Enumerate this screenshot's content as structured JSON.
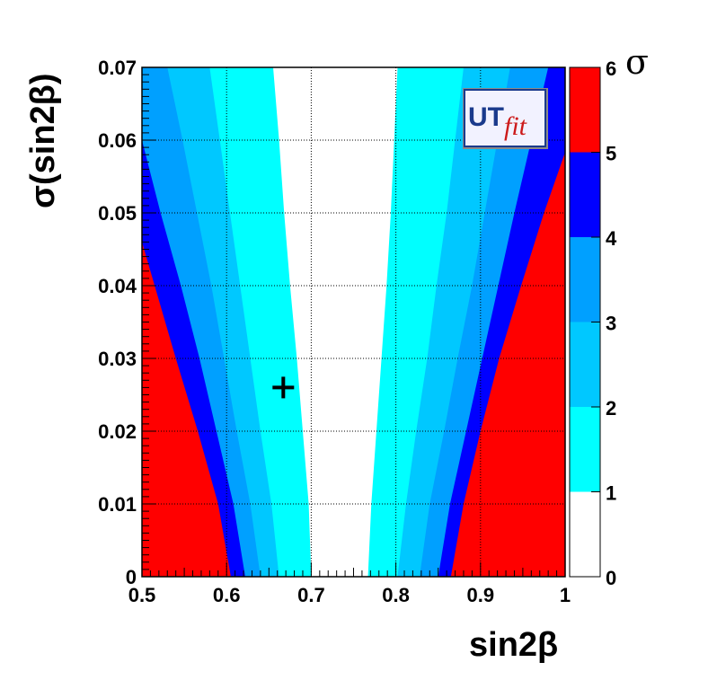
{
  "chart_data": {
    "type": "heatmap",
    "xlabel": "sin2β",
    "ylabel": "σ(sin2β)",
    "xlim": [
      0.5,
      1.0
    ],
    "ylim": [
      0,
      0.07
    ],
    "x_ticks": [
      "0.5",
      "0.6",
      "0.7",
      "0.8",
      "0.9",
      "1"
    ],
    "y_ticks": [
      "0",
      "0.01",
      "0.02",
      "0.03",
      "0.04",
      "0.05",
      "0.06",
      "0.07"
    ],
    "grid": true,
    "colorbar": {
      "title": "σ",
      "range": [
        0,
        6
      ],
      "ticks": [
        "0",
        "1",
        "2",
        "3",
        "4",
        "5",
        "6"
      ],
      "levels": [
        {
          "from": 0,
          "to": 1,
          "color": "#ffffff"
        },
        {
          "from": 1,
          "to": 2,
          "color": "#00ffff"
        },
        {
          "from": 2,
          "to": 3,
          "color": "#00c8ff"
        },
        {
          "from": 3,
          "to": 4,
          "color": "#00a0ff"
        },
        {
          "from": 4,
          "to": 5,
          "color": "#0000ff"
        },
        {
          "from": 5,
          "to": 6,
          "color": "#ff0000"
        }
      ]
    },
    "contours": {
      "sigma_values": [
        0,
        0.01,
        0.02,
        0.03,
        0.04,
        0.05,
        0.06,
        0.07
      ],
      "left": [
        {
          "level": 1,
          "x": [
            0.7,
            0.697,
            0.69,
            0.683,
            0.675,
            0.668,
            0.662,
            0.655
          ]
        },
        {
          "level": 2,
          "x": [
            0.662,
            0.653,
            0.64,
            0.628,
            0.616,
            0.604,
            0.592,
            0.58
          ]
        },
        {
          "level": 3,
          "x": [
            0.64,
            0.628,
            0.612,
            0.597,
            0.582,
            0.565,
            0.548,
            0.53
          ]
        },
        {
          "level": 4,
          "x": [
            0.622,
            0.608,
            0.588,
            0.568,
            0.546,
            0.522,
            0.5,
            0.48
          ]
        },
        {
          "level": 5,
          "x": [
            0.605,
            0.59,
            0.566,
            0.54,
            0.515,
            0.49,
            0.47,
            0.45
          ]
        }
      ],
      "right": [
        {
          "level": 1,
          "x": [
            0.767,
            0.771,
            0.777,
            0.783,
            0.789,
            0.794,
            0.798,
            0.802
          ]
        },
        {
          "level": 2,
          "x": [
            0.802,
            0.812,
            0.824,
            0.837,
            0.848,
            0.86,
            0.87,
            0.88
          ]
        },
        {
          "level": 3,
          "x": [
            0.828,
            0.84,
            0.857,
            0.873,
            0.89,
            0.905,
            0.92,
            0.935
          ]
        },
        {
          "level": 4,
          "x": [
            0.85,
            0.864,
            0.883,
            0.902,
            0.921,
            0.94,
            0.96,
            0.98
          ]
        },
        {
          "level": 5,
          "x": [
            0.865,
            0.88,
            0.9,
            0.922,
            0.948,
            0.975,
            1.005,
            1.035
          ]
        }
      ]
    },
    "marker": {
      "symbol": "+",
      "x": 0.667,
      "y": 0.026
    }
  },
  "logo": {
    "text_ut": "UT",
    "text_fit": "fit"
  }
}
